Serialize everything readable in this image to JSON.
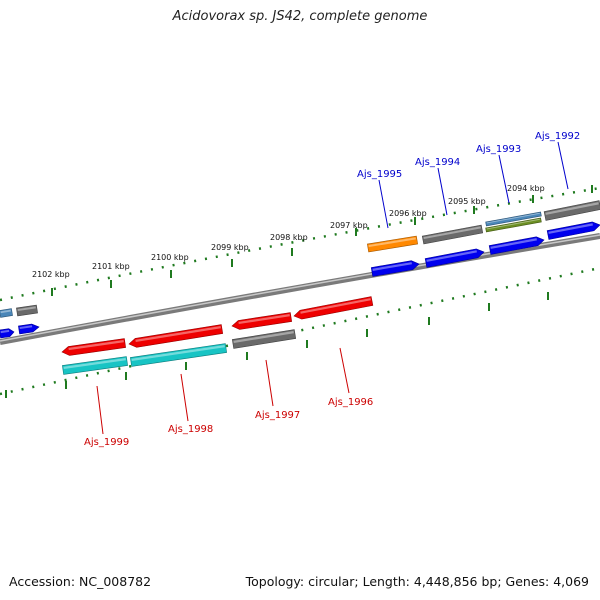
{
  "title": "Acidovorax sp. JS42, complete genome",
  "footer": {
    "accession": "Accession: NC_008782",
    "summary": "Topology: circular; Length: 4,448,856 bp; Genes: 4,069"
  },
  "colors": {
    "backbone": "#8a8a8a",
    "ruler": "#1f7a1f",
    "label_forward": "#0000cc",
    "label_reverse": "#cc0000",
    "gene_red": "#ee0000",
    "gene_blue": "#0000ee",
    "gene_gray": "#6a6a6a",
    "gene_cyan": "#18c4c4",
    "gene_orange": "#ff8800",
    "gene_steel": "#4a86b8",
    "gene_olive": "#6b8e23"
  },
  "kbp_ticks": [
    "2094 kbp",
    "2095 kbp",
    "2096 kbp",
    "2097 kbp",
    "2098 kbp",
    "2099 kbp",
    "2100 kbp",
    "2101 kbp",
    "2102 kbp"
  ],
  "gene_labels_forward": [
    "Ajs_1992",
    "Ajs_1993",
    "Ajs_1994",
    "Ajs_1995"
  ],
  "gene_labels_reverse": [
    "Ajs_1996",
    "Ajs_1997",
    "Ajs_1998",
    "Ajs_1999"
  ]
}
